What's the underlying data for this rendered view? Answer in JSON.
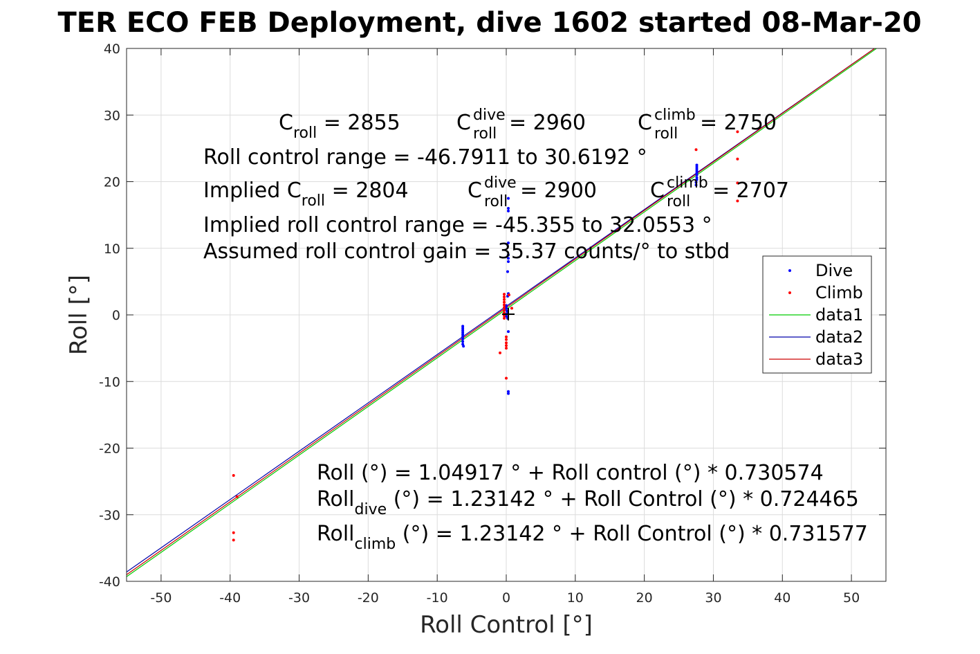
{
  "chart_data": {
    "type": "scatter",
    "title": "TER ECO FEB Deployment, dive 1602 started 08-Mar-20",
    "xlabel": "Roll Control [°]",
    "ylabel": "Roll [°]",
    "xlim": [
      -55,
      55
    ],
    "ylim": [
      -40,
      40
    ],
    "xticks": [
      -50,
      -40,
      -30,
      -20,
      -10,
      0,
      10,
      20,
      30,
      40,
      50
    ],
    "yticks": [
      -40,
      -30,
      -20,
      -10,
      0,
      10,
      20,
      30,
      40
    ],
    "grid": true,
    "legend_position": "right",
    "series": [
      {
        "name": "Dive",
        "kind": "points",
        "color": "#0000ff",
        "points": [
          [
            -6.3,
            -1.7
          ],
          [
            -6.3,
            -2.0
          ],
          [
            -6.3,
            -2.3
          ],
          [
            -6.3,
            -2.6
          ],
          [
            -6.3,
            -2.9
          ],
          [
            -6.3,
            -3.2
          ],
          [
            -6.3,
            -3.6
          ],
          [
            -6.3,
            -4.0
          ],
          [
            -6.3,
            -4.4
          ],
          [
            -6.2,
            -4.7
          ],
          [
            0.3,
            17.5
          ],
          [
            0.3,
            16.0
          ],
          [
            0.3,
            15.6
          ],
          [
            0.3,
            10.8
          ],
          [
            0.3,
            9.0
          ],
          [
            0.3,
            8.5
          ],
          [
            0.3,
            8.0
          ],
          [
            0.2,
            6.5
          ],
          [
            0.3,
            3.2
          ],
          [
            0.2,
            2.8
          ],
          [
            0.0,
            1.4
          ],
          [
            0.0,
            1.0
          ],
          [
            0.1,
            0.6
          ],
          [
            0.1,
            0.2
          ],
          [
            0.0,
            -0.2
          ],
          [
            0.2,
            -0.5
          ],
          [
            0.3,
            -2.5
          ],
          [
            0.3,
            -11.5
          ],
          [
            0.3,
            -11.8
          ],
          [
            27.6,
            22.5
          ],
          [
            27.6,
            22.2
          ],
          [
            27.6,
            21.9
          ],
          [
            27.6,
            21.6
          ],
          [
            27.6,
            21.3
          ],
          [
            27.6,
            21.0
          ],
          [
            27.6,
            20.6
          ],
          [
            27.6,
            20.3
          ],
          [
            27.5,
            19.9
          ],
          [
            27.5,
            19.5
          ]
        ]
      },
      {
        "name": "Climb",
        "kind": "points",
        "color": "#ff0000",
        "points": [
          [
            -0.3,
            3.1
          ],
          [
            -0.3,
            2.7
          ],
          [
            -0.3,
            2.3
          ],
          [
            -0.3,
            1.9
          ],
          [
            -0.3,
            1.5
          ],
          [
            -0.3,
            1.1
          ],
          [
            -0.3,
            0.7
          ],
          [
            -0.3,
            0.3
          ],
          [
            -0.3,
            -0.1
          ],
          [
            -0.3,
            -0.5
          ],
          [
            0.0,
            -3.3
          ],
          [
            0.0,
            -3.7
          ],
          [
            0.0,
            -4.2
          ],
          [
            0.0,
            -4.6
          ],
          [
            0.0,
            -5.0
          ],
          [
            -0.9,
            -5.7
          ],
          [
            0.0,
            -9.5
          ],
          [
            0.8,
            1.0
          ],
          [
            0.4,
            3.0
          ],
          [
            27.5,
            24.8
          ],
          [
            33.5,
            27.5
          ],
          [
            33.5,
            23.4
          ],
          [
            33.5,
            19.8
          ],
          [
            33.5,
            17.1
          ],
          [
            -39.5,
            -24.1
          ],
          [
            -39.0,
            -27.3
          ],
          [
            -39.5,
            -32.7
          ],
          [
            -39.5,
            -33.8
          ]
        ]
      },
      {
        "name": "data1",
        "kind": "line",
        "color": "#00cc00",
        "x": [
          -55,
          55
        ],
        "y": [
          -39.3,
          41.0
        ]
      },
      {
        "name": "data2",
        "kind": "line",
        "color": "#0000aa",
        "x": [
          -55,
          55
        ],
        "y": [
          -38.6,
          41.2
        ]
      },
      {
        "name": "data3",
        "kind": "line",
        "color": "#cc0000",
        "x": [
          -55,
          55
        ],
        "y": [
          -39.0,
          41.2
        ]
      }
    ],
    "marker": {
      "symbol": "+",
      "x": 0.3,
      "y": 0.1,
      "color": "#000000"
    }
  },
  "annotations": {
    "c_roll": {
      "base": "C",
      "sub": "roll",
      "value": " = 2855"
    },
    "c_roll_dive": {
      "base": "C",
      "sup": "dive",
      "sub": "roll",
      "value": " = 2960"
    },
    "c_roll_climb": {
      "base": "C",
      "sup": "climb",
      "sub": "roll",
      "value": " = 2750"
    },
    "roll_control_range": "Roll control range = -46.7911 to 30.6192 °",
    "implied_c_roll": {
      "base": "Implied C",
      "sub": "roll",
      "value": " = 2804"
    },
    "implied_c_roll_dive": {
      "base": "C",
      "sup": "dive",
      "sub": "roll",
      "value": " = 2900"
    },
    "implied_c_roll_climb": {
      "base": "C",
      "sup": "climb",
      "sub": "roll",
      "value": " = 2707"
    },
    "implied_range": "Implied roll control range = -45.355 to 32.0553 °",
    "assumed_gain": "Assumed roll control gain = 35.37 counts/° to stbd",
    "fit_all": "Roll (°) = 1.04917 ° + Roll control (°) * 0.730574",
    "fit_dive": {
      "base": "Roll",
      "sub": "dive",
      "value": " (°) = 1.23142 ° + Roll Control (°) * 0.724465"
    },
    "fit_climb": {
      "base": "Roll",
      "sub": "climb",
      "value": " (°) = 1.23142 ° + Roll Control (°) * 0.731577"
    }
  }
}
